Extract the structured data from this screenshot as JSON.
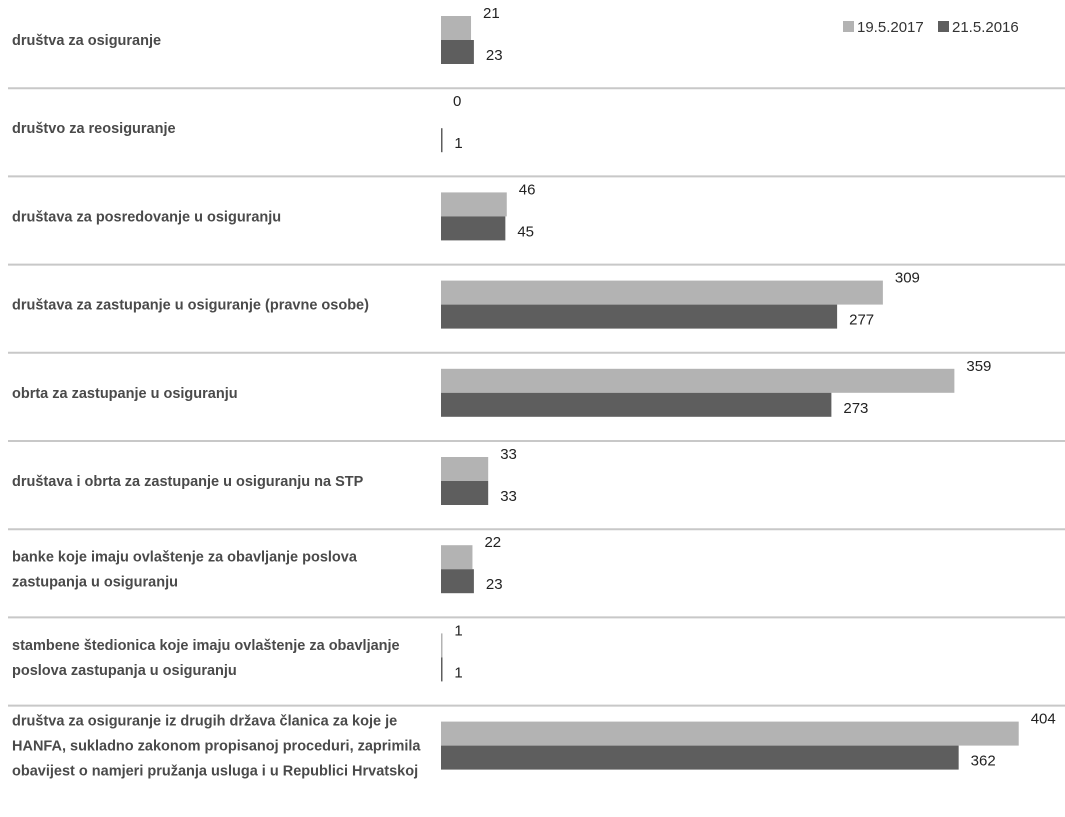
{
  "chart_data": {
    "type": "bar",
    "orientation": "horizontal",
    "categories": [
      [
        "društva za osiguranje"
      ],
      [
        "društvo za reosiguranje"
      ],
      [
        "društava za posredovanje u osiguranju"
      ],
      [
        "društava za zastupanje u osiguranje (pravne osobe)"
      ],
      [
        "obrta za zastupanje u osiguranju"
      ],
      [
        "društava i obrta za zastupanje u osiguranju na STP"
      ],
      [
        "banke koje imaju ovlaštenje za obavljanje poslova",
        "zastupanja u osiguranju"
      ],
      [
        "stambene štedionica koje imaju ovlaštenje za obavljanje",
        "poslova zastupanja u osiguranju"
      ],
      [
        "društva za osiguranje iz drugih država članica za koje je",
        "HANFA, sukladno zakonom propisanoj proceduri, zaprimila",
        "obavijest o namjeri pružanja usluga i u Republici Hrvatskoj"
      ]
    ],
    "series": [
      {
        "name": "19.5.2017",
        "color": "#b3b3b3",
        "values": [
          21,
          0,
          46,
          309,
          359,
          33,
          22,
          1,
          404
        ]
      },
      {
        "name": "21.5.2016",
        "color": "#5e5e5e",
        "values": [
          23,
          1,
          45,
          277,
          273,
          33,
          23,
          1,
          362
        ]
      }
    ],
    "xlim": [
      0,
      420
    ],
    "grid": false,
    "legend_position": "top-right"
  }
}
